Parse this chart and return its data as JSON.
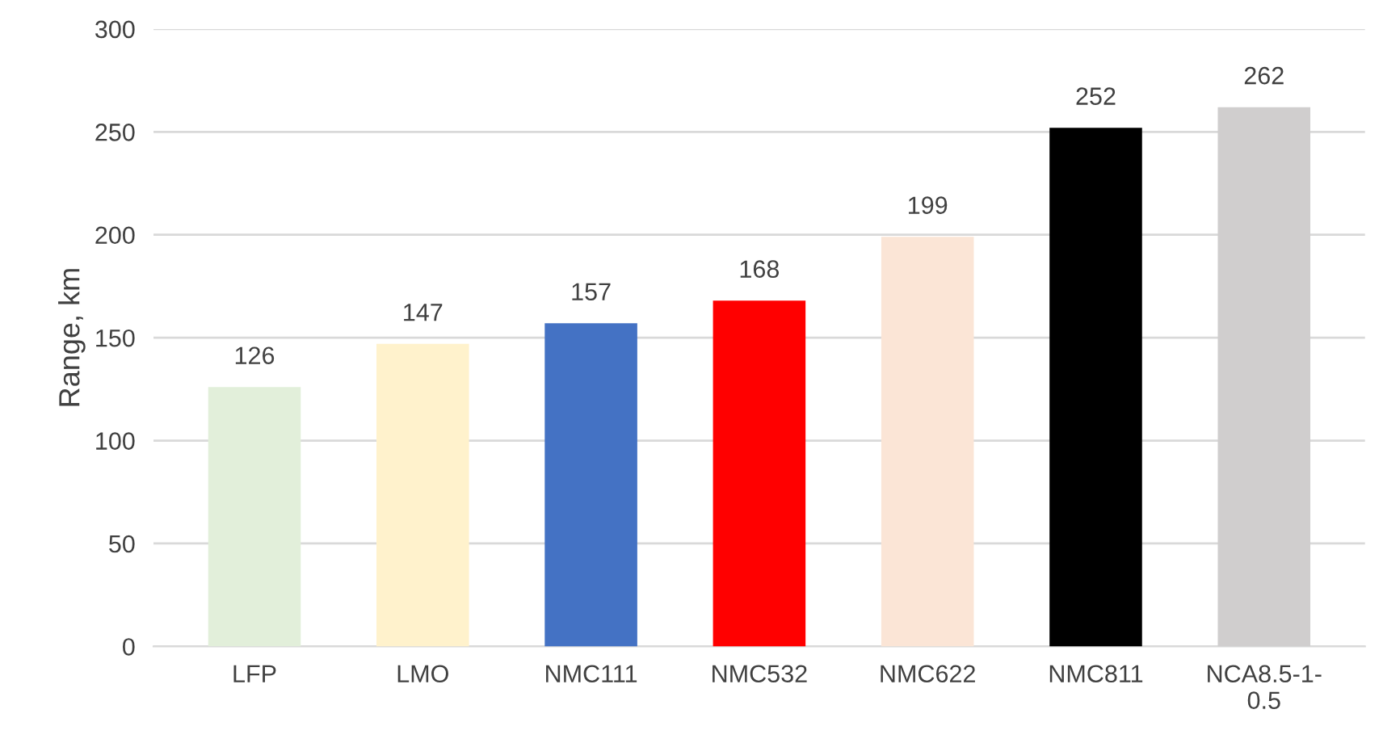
{
  "chart_data": {
    "type": "bar",
    "ylabel": "Range, km",
    "categories": [
      "LFP",
      "LMO",
      "NMC111",
      "NMC532",
      "NMC622",
      "NMC811",
      "NCA8.5-1-0.5"
    ],
    "values": [
      126,
      147,
      157,
      168,
      199,
      252,
      262
    ],
    "colors": [
      "#e2efda",
      "#fff2cc",
      "#4472c4",
      "#ff0000",
      "#fbe5d6",
      "#000000",
      "#d0cece"
    ],
    "ylim": [
      0,
      300
    ],
    "yticks": [
      0,
      50,
      100,
      150,
      200,
      250,
      300
    ],
    "grid": "y",
    "data_labels": true,
    "legend": false
  }
}
